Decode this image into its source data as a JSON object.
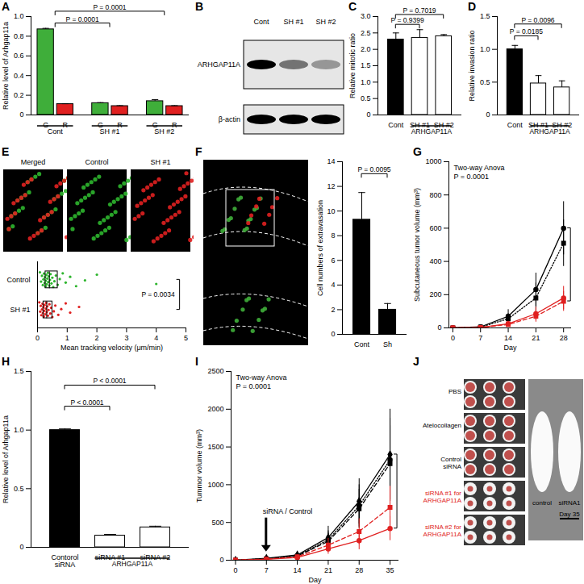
{
  "chart_data": [
    {
      "panel": "A",
      "type": "bar",
      "ylabel": "Relative level of Arhgap11a",
      "categories": [
        "Cont",
        "SH #1",
        "SH #2"
      ],
      "series": [
        {
          "name": "G",
          "color": "#3fae3a",
          "values": [
            0.87,
            0.12,
            0.14
          ],
          "errors": [
            0.01,
            0.005,
            0.015
          ]
        },
        {
          "name": "R",
          "color": "#e02020",
          "values": [
            0.11,
            0.09,
            0.09
          ],
          "errors": [
            0.004,
            0.004,
            0.004
          ]
        }
      ],
      "ylim": [
        0,
        1
      ],
      "yticks": [
        0,
        0.2,
        0.4,
        0.6,
        0.8,
        {
          "value": 1,
          "label": "1.0"
        }
      ],
      "annotations": [
        {
          "text": "P = 0.0001",
          "from": "Cont",
          "to": "SH #1",
          "y": 0.93
        },
        {
          "text": "P = 0.0001",
          "from": "Cont",
          "to": "SH #2",
          "y": 1.05
        }
      ]
    },
    {
      "panel": "B",
      "type": "western_blot",
      "lanes": [
        "Cont",
        "SH #1",
        "SH #2"
      ],
      "bands": [
        {
          "label": "ARHGAP11A",
          "intensity": [
            1,
            0.5,
            0.35
          ]
        },
        {
          "label": "β-actin",
          "intensity": [
            1,
            1,
            1
          ]
        }
      ]
    },
    {
      "panel": "C",
      "type": "bar",
      "ylabel": "Relative mitotic ratio",
      "categories": [
        "Cont",
        "SH #1",
        "SH #2"
      ],
      "values": [
        2.3,
        2.35,
        2.4
      ],
      "errors": [
        0.2,
        0.25,
        0.05
      ],
      "colors": [
        "#000000",
        "#ffffff",
        "#ffffff"
      ],
      "group": {
        "label": "ARHGAP11A",
        "members": [
          "SH #1",
          "SH #2"
        ]
      },
      "ylim": [
        0,
        3
      ],
      "yticks": [
        0,
        0.5,
        {
          "value": 1,
          "label": "1.0"
        },
        1.5,
        {
          "value": 2,
          "label": "2.0"
        },
        2.5,
        {
          "value": 3,
          "label": "3.0"
        }
      ],
      "annotations": [
        {
          "text": "P = 0.9399",
          "from": "Cont",
          "to": "SH #1",
          "y": 2.75
        },
        {
          "text": "P = 0.7019",
          "from": "Cont",
          "to": "SH #2",
          "y": 3.05
        }
      ]
    },
    {
      "panel": "D",
      "type": "bar",
      "ylabel": "Relative invasion ratio",
      "categories": [
        "Cont",
        "SH #1",
        "SH #2"
      ],
      "values": [
        1.0,
        0.48,
        0.42
      ],
      "errors": [
        0.06,
        0.12,
        0.1
      ],
      "colors": [
        "#000000",
        "#ffffff",
        "#ffffff"
      ],
      "group": {
        "label": "ARHGAP11A",
        "members": [
          "SH #1",
          "SH #2"
        ]
      },
      "ylim": [
        0,
        1.5
      ],
      "yticks": [
        0,
        0.5,
        {
          "value": 1,
          "label": "1.0"
        },
        1.5
      ],
      "annotations": [
        {
          "text": "P = 0.0185",
          "from": "Cont",
          "to": "SH #1",
          "y": 1.2
        },
        {
          "text": "P = 0.0096",
          "from": "Cont",
          "to": "SH #2",
          "y": 1.38
        }
      ]
    },
    {
      "panel": "E",
      "type": "strip",
      "images": [
        {
          "label": "Merged"
        },
        {
          "label": "Control",
          "color": "#2db52d"
        },
        {
          "label": "SH #1",
          "color": "#e02020"
        }
      ],
      "xlabel": "Mean tracking velocity (μm/min)",
      "xlim": [
        0,
        5
      ],
      "xticks": [
        0,
        1,
        2,
        3,
        4,
        5
      ],
      "series": [
        {
          "name": "Control",
          "color": "#2db52d",
          "values": [
            0.08,
            0.12,
            0.15,
            0.18,
            0.2,
            0.22,
            0.24,
            0.25,
            0.27,
            0.28,
            0.3,
            0.31,
            0.33,
            0.35,
            0.36,
            0.38,
            0.4,
            0.42,
            0.44,
            0.47,
            0.5,
            0.53,
            0.57,
            0.62,
            0.68,
            0.75,
            0.85,
            0.95,
            1.1,
            1.3,
            1.6,
            2.0,
            4.0
          ]
        },
        {
          "name": "SH #1",
          "color": "#e02020",
          "values": [
            0.06,
            0.09,
            0.11,
            0.13,
            0.15,
            0.17,
            0.18,
            0.2,
            0.21,
            0.23,
            0.24,
            0.26,
            0.28,
            0.29,
            0.31,
            0.33,
            0.35,
            0.37,
            0.4,
            0.43,
            0.46,
            0.5,
            0.55,
            0.6,
            0.7,
            0.8,
            0.95,
            1.1,
            1.4
          ]
        }
      ],
      "annotations": [
        {
          "text": "P = 0.0034",
          "x": 4.8
        }
      ]
    },
    {
      "panel": "F",
      "type": "bar",
      "ylabel": "Cell numbers of extravasation",
      "categories": [
        "Cont",
        "Sh"
      ],
      "values": [
        9.3,
        2.0
      ],
      "errors": [
        2.2,
        0.5
      ],
      "colors": [
        "#000000",
        "#000000"
      ],
      "ylim": [
        0,
        14
      ],
      "yticks": [
        0,
        2,
        4,
        6,
        8,
        10,
        12,
        14
      ],
      "annotations": [
        {
          "text": "P = 0.0095",
          "from": "Cont",
          "to": "Sh",
          "y": 13
        }
      ]
    },
    {
      "panel": "G",
      "type": "line",
      "xlabel": "Day",
      "ylabel": "Subcutaneous tumor volume (mm³)",
      "x": [
        0,
        7,
        14,
        21,
        28
      ],
      "xlim": [
        -1,
        30
      ],
      "xticks": [
        0,
        7,
        14,
        21,
        28
      ],
      "ylim": [
        0,
        1000
      ],
      "yticks": [
        0,
        200,
        400,
        600,
        800,
        1000
      ],
      "series": [
        {
          "color": "#000000",
          "line_style": "solid",
          "marker": "circle",
          "values": [
            0,
            6,
            70,
            230,
            600
          ],
          "errors": [
            0,
            3,
            40,
            100,
            160
          ]
        },
        {
          "color": "#000000",
          "line_style": "dotted",
          "marker": "square",
          "values": [
            0,
            5,
            55,
            180,
            510
          ],
          "errors": [
            0,
            3,
            30,
            90,
            140
          ]
        },
        {
          "color": "#e02020",
          "line_style": "solid",
          "marker": "circle",
          "values": [
            0,
            3,
            25,
            85,
            180
          ],
          "errors": [
            0,
            2,
            15,
            40,
            70
          ]
        },
        {
          "color": "#e02020",
          "line_style": "dashed",
          "marker": "square",
          "values": [
            0,
            3,
            20,
            70,
            160
          ],
          "errors": [
            0,
            2,
            12,
            35,
            60
          ]
        }
      ],
      "annotations": [
        {
          "text": "Two-way Anova"
        },
        {
          "text": "P = 0.0001"
        }
      ]
    },
    {
      "panel": "H",
      "type": "bar",
      "ylabel": "Relative level of Arhgap11a",
      "categories": [
        "Contorol siRNA",
        "siRNA #1",
        "siRNA #2"
      ],
      "values": [
        1.0,
        0.1,
        0.17
      ],
      "errors": [
        0.01,
        0.01,
        0.01
      ],
      "colors": [
        "#000000",
        "#ffffff",
        "#ffffff"
      ],
      "group": {
        "label": "ARHGAP11A",
        "members": [
          "siRNA #1",
          "siRNA #2"
        ]
      },
      "ylim": [
        0,
        1.5
      ],
      "yticks": [
        0,
        0.5,
        {
          "value": 1,
          "label": "1.0"
        },
        1.5
      ],
      "annotations": [
        {
          "text": "P < 0.0001",
          "from": "Contorol siRNA",
          "to": "siRNA #1",
          "y": 1.2
        },
        {
          "text": "P < 0.0001",
          "from": "Contorol siRNA",
          "to": "siRNA #2",
          "y": 1.38
        }
      ]
    },
    {
      "panel": "I",
      "type": "line",
      "xlabel": "Day",
      "ylabel": "Tummor volume (mm³)",
      "x": [
        0,
        7,
        14,
        21,
        28,
        35
      ],
      "xlim": [
        -1,
        37
      ],
      "xticks": [
        0,
        7,
        14,
        21,
        28,
        35
      ],
      "ylim": [
        0,
        2500
      ],
      "yticks": [
        0,
        500,
        1000,
        1500,
        2000,
        2500
      ],
      "series": [
        {
          "color": "#000000",
          "line_style": "solid",
          "marker": "diamond",
          "values": [
            0,
            25,
            70,
            300,
            780,
            1400
          ],
          "errors": [
            0,
            10,
            40,
            150,
            300,
            600
          ]
        },
        {
          "color": "#000000",
          "line_style": "dotted",
          "marker": "circle",
          "values": [
            0,
            20,
            60,
            270,
            720,
            1330
          ],
          "errors": [
            0,
            10,
            30,
            120,
            280,
            550
          ]
        },
        {
          "color": "#000000",
          "line_style": "dashed",
          "marker": "square",
          "values": [
            0,
            18,
            55,
            250,
            680,
            1280
          ],
          "errors": [
            0,
            10,
            30,
            110,
            260,
            500
          ]
        },
        {
          "color": "#e02020",
          "line_style": "dashed",
          "marker": "square",
          "values": [
            0,
            15,
            45,
            200,
            380,
            700
          ],
          "errors": [
            0,
            8,
            25,
            90,
            170,
            280
          ]
        },
        {
          "color": "#e02020",
          "line_style": "solid",
          "marker": "circle",
          "values": [
            0,
            12,
            35,
            150,
            260,
            420
          ],
          "errors": [
            0,
            8,
            20,
            70,
            120,
            160
          ]
        }
      ],
      "annotations": [
        {
          "text": "siRNA / Control",
          "x": 7
        },
        {
          "text": "Two-way Anova"
        },
        {
          "text": "P = 0.0001"
        }
      ]
    },
    {
      "panel": "J",
      "type": "photo",
      "rows": [
        {
          "label": "PBS",
          "color": "#000000"
        },
        {
          "label": "Atelocollagen",
          "color": "#000000"
        },
        {
          "label": "Control siRNA",
          "color": "#000000"
        },
        {
          "label": "siRNA #1 for ARHGAP11A",
          "color": "#e02020"
        },
        {
          "label": "siRNA #2 for ARHGAP11A",
          "color": "#e02020"
        }
      ],
      "mice": [
        "control",
        "siRNA1"
      ],
      "caption": "Day 35"
    }
  ]
}
